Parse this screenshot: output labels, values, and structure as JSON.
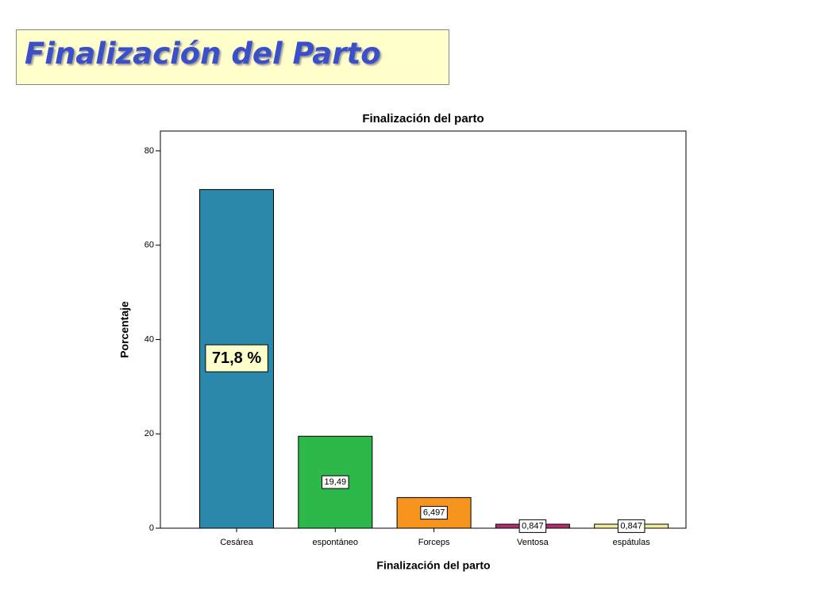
{
  "slide_title": "Finalización del Parto",
  "chart_data": {
    "type": "bar",
    "title": "Finalización del parto",
    "x_label": "Finalización del parto",
    "y_label": "Porcentaje",
    "categories": [
      "Cesárea",
      "espontáneo",
      "Forceps",
      "Ventosa",
      "espátulas"
    ],
    "values": [
      71.8,
      19.49,
      6.497,
      0.847,
      0.847
    ],
    "value_labels": [
      "71,8 %",
      "19,49",
      "6,497",
      "0,847",
      "0,847"
    ],
    "colors": [
      "#2a89aa",
      "#2db84a",
      "#f7941d",
      "#b0306f",
      "#f3ee9c"
    ],
    "ylim": [
      0,
      84.2
    ],
    "yticks": [
      0,
      20,
      40,
      60,
      80
    ]
  }
}
